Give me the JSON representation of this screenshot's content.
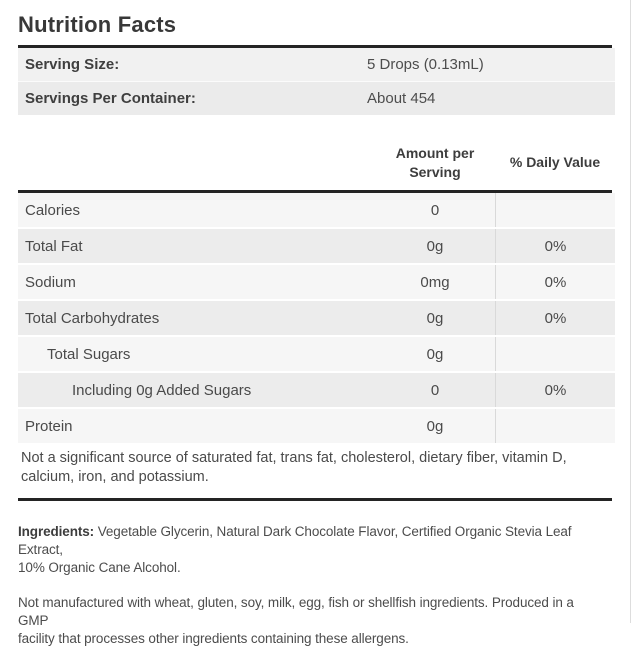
{
  "title": "Nutrition Facts",
  "serving_info": {
    "rows": [
      {
        "label": "Serving Size:",
        "value": "5 Drops (0.13mL)"
      },
      {
        "label": "Servings Per Container:",
        "value": "About 454"
      }
    ]
  },
  "table": {
    "columns": {
      "amount": "Amount per\nServing",
      "daily": "% Daily Value"
    },
    "rows": [
      {
        "label": "Calories",
        "amount": "0",
        "daily": ""
      },
      {
        "label": "Total Fat",
        "amount": "0g",
        "daily": "0%"
      },
      {
        "label": "Sodium",
        "amount": "0mg",
        "daily": "0%"
      },
      {
        "label": "Total Carbohydrates",
        "amount": "0g",
        "daily": "0%"
      },
      {
        "label": "Total Sugars",
        "amount": "0g",
        "daily": ""
      },
      {
        "label": "Including 0g Added Sugars",
        "amount": "0",
        "daily": "0%"
      },
      {
        "label": "Protein",
        "amount": "0g",
        "daily": ""
      }
    ],
    "footnote": "Not a significant source of saturated fat, trans fat, cholesterol, dietary fiber, vitamin D,\ncalcium, iron, and potassium."
  },
  "ingredients": {
    "label": "Ingredients:",
    "text": "Vegetable Glycerin, Natural Dark Chocolate Flavor, Certified Organic Stevia Leaf Extract,\n10% Organic Cane Alcohol."
  },
  "allergen_notice": "Not manufactured with wheat, gluten, soy, milk, egg, fish or shellfish ingredients. Produced in a GMP\nfacility that processes other ingredients containing these allergens.",
  "colors": {
    "rule_dark": "#242424",
    "row_shade_light": "#f6f6f6",
    "row_shade_dark": "#ececec",
    "panel_border": "#dddddd"
  }
}
